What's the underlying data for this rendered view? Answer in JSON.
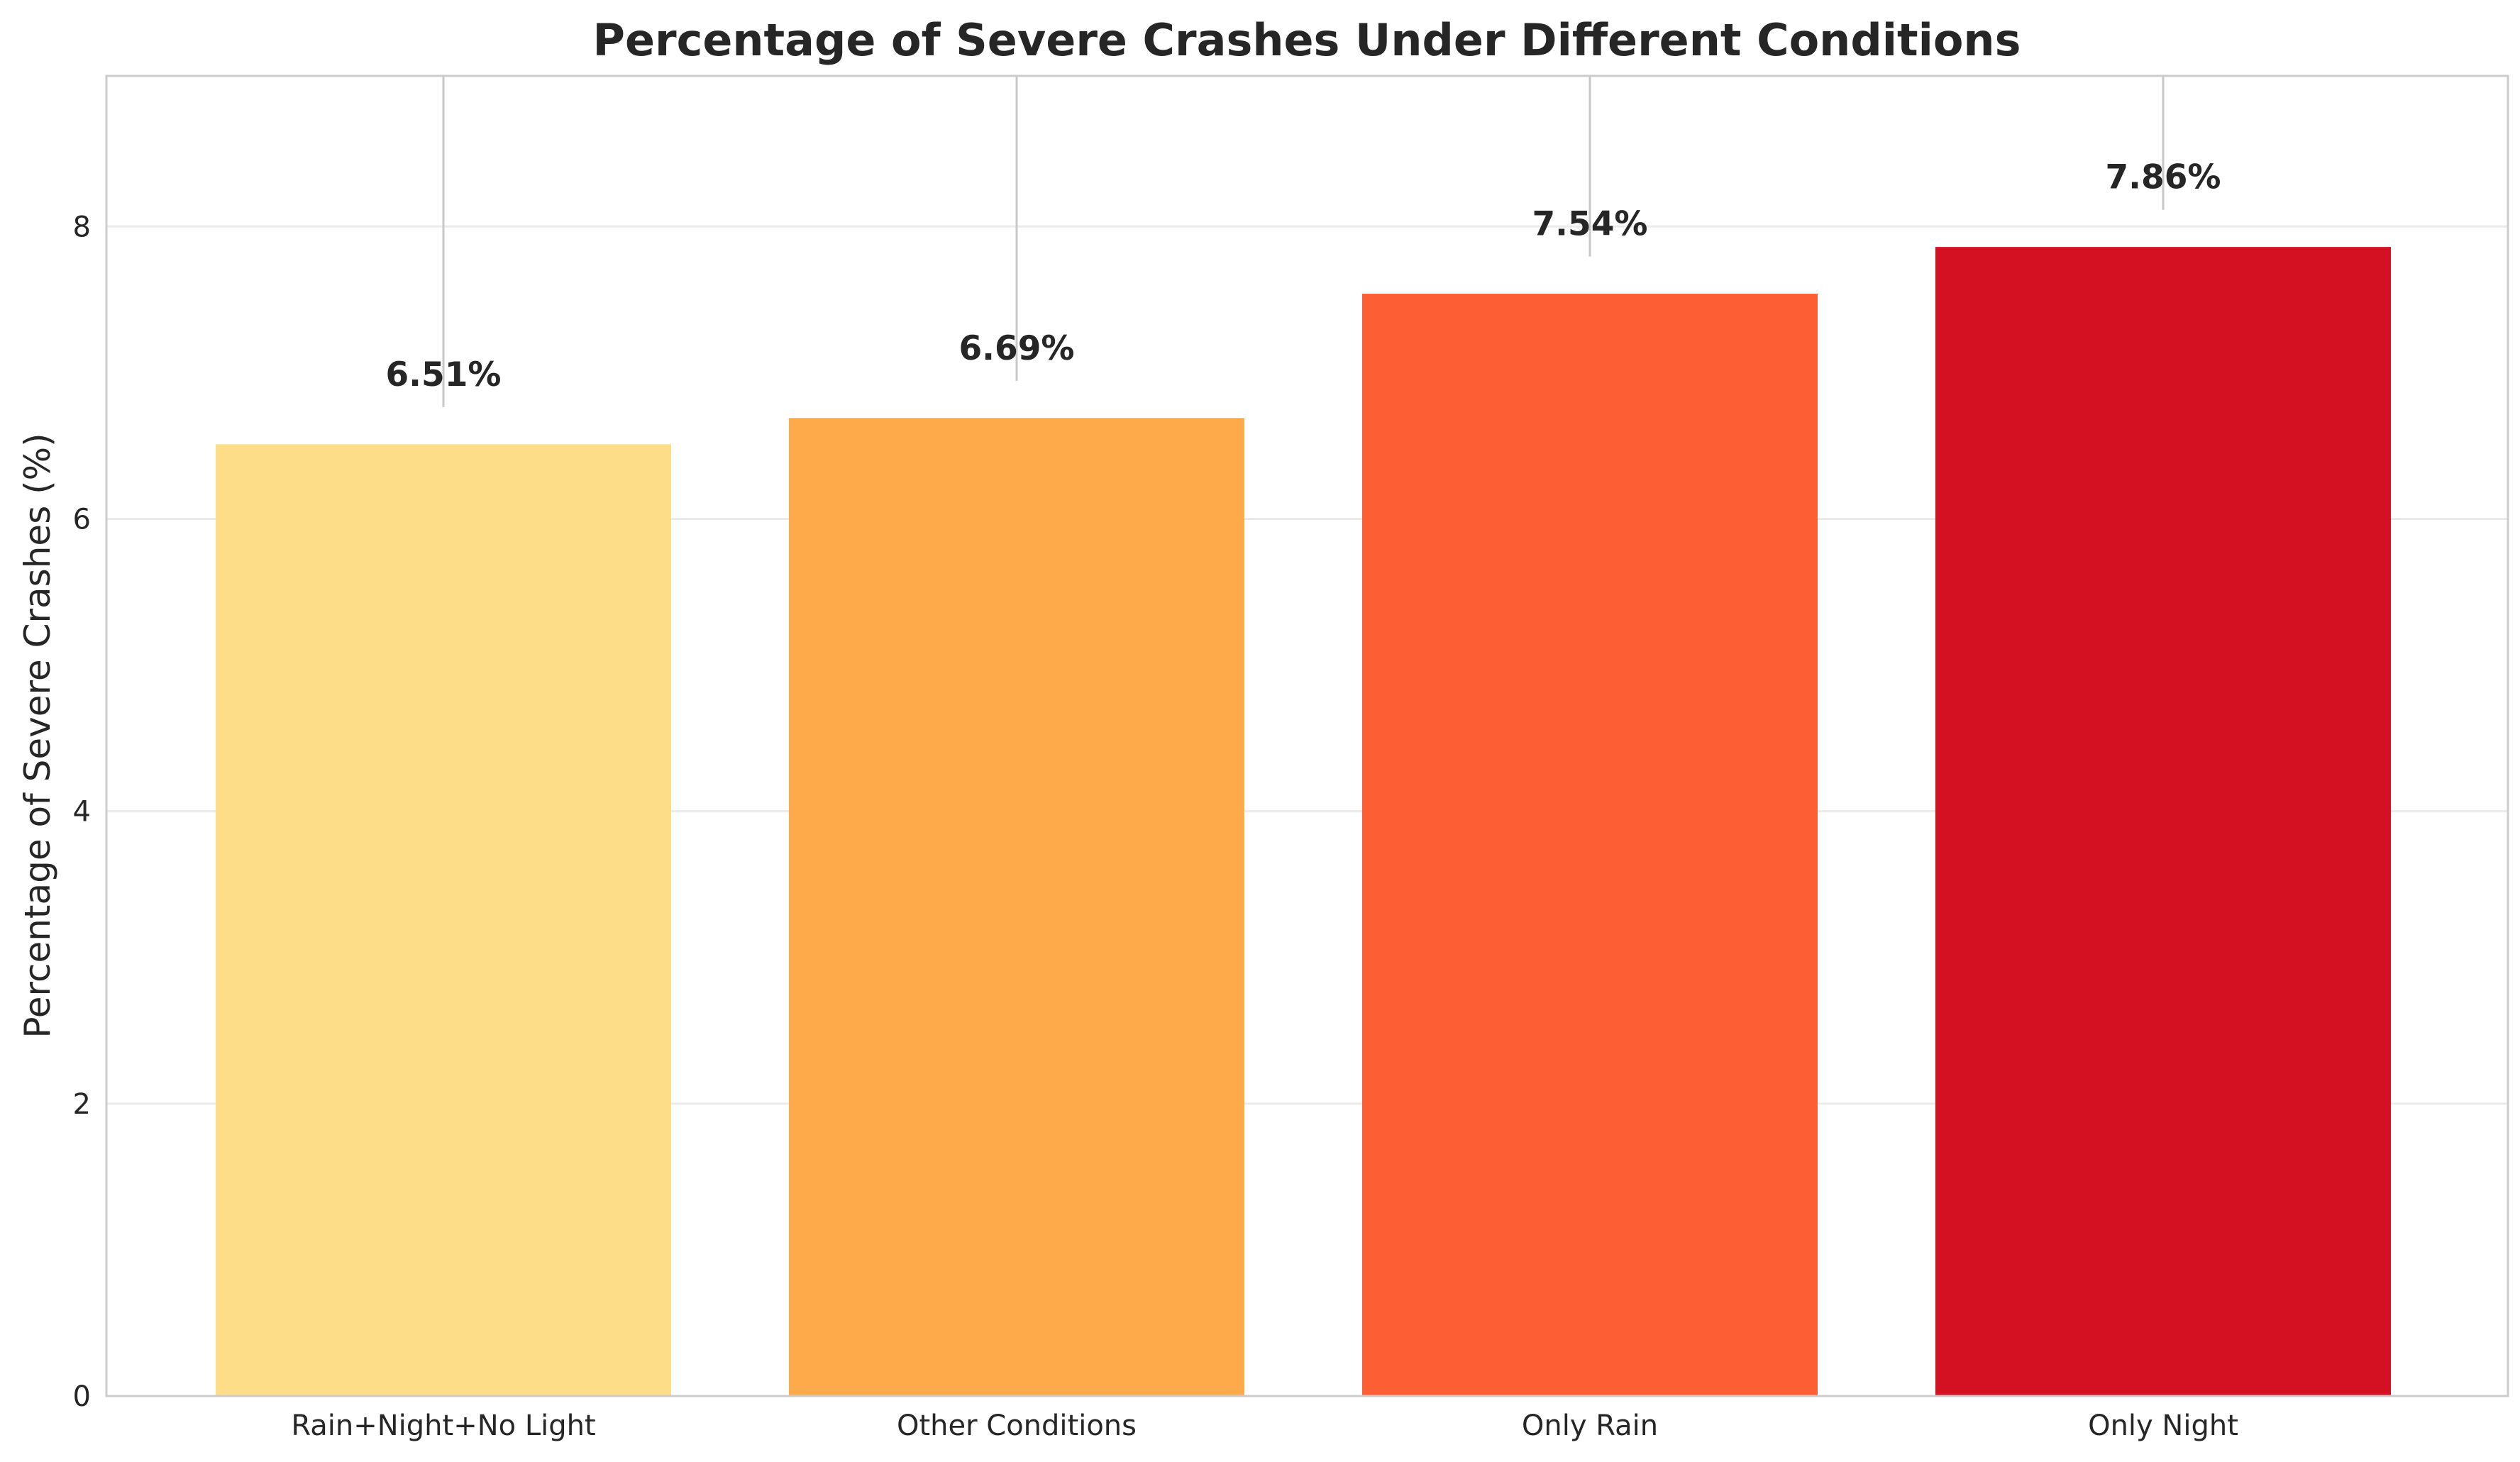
{
  "chart_data": {
    "type": "bar",
    "title": "Percentage of Severe Crashes Under Different Conditions",
    "xlabel": "",
    "ylabel": "Percentage of Severe Crashes (%)",
    "categories": [
      "Rain+Night+No Light",
      "Other Conditions",
      "Only Rain",
      "Only Night"
    ],
    "values": [
      6.51,
      6.69,
      7.54,
      7.86
    ],
    "value_labels": [
      "6.51%",
      "6.69%",
      "7.54%",
      "7.86%"
    ],
    "colors": [
      "#fedd88",
      "#fdaa4b",
      "#fd5e33",
      "#d41123"
    ],
    "ylim": [
      0,
      9.03
    ],
    "yticks": [
      0,
      2,
      4,
      6,
      8
    ],
    "ytick_labels": [
      "0",
      "2",
      "4",
      "6",
      "8"
    ],
    "grid": true,
    "label_stems": true
  }
}
